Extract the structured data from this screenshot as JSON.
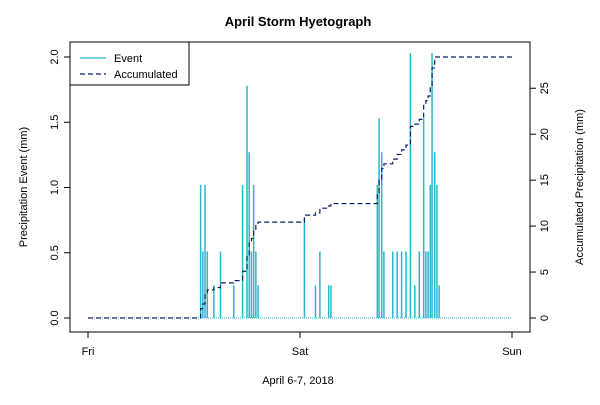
{
  "chart_data": {
    "type": "line",
    "title": "April Storm Hyetograph",
    "xlabel": "April 6-7, 2018",
    "ylabel_left": "Precipitation Event (mm)",
    "ylabel_right": "Accumulated Precipitation (mm)",
    "x_ticks": [
      "Fri",
      "Sat",
      "Sun"
    ],
    "x_range_hours": [
      0,
      48
    ],
    "ylim_left": [
      0,
      2.0
    ],
    "yticks_left": [
      "0.0",
      "0.5",
      "1.0",
      "1.5",
      "2.0"
    ],
    "ylim_right": [
      0,
      28.4
    ],
    "yticks_right": [
      "0",
      "5",
      "10",
      "15",
      "20",
      "25"
    ],
    "grid": false,
    "legend_position": "top-left",
    "colors": {
      "event": "#29b6d1",
      "accumulated": "#0b1f6b"
    },
    "series": [
      {
        "name": "Event",
        "style": "vertical bars",
        "x": [
          12.75,
          13.0,
          13.25,
          13.5,
          14.25,
          15.0,
          16.5,
          17.5,
          18.0,
          18.25,
          18.5,
          18.75,
          19.0,
          19.25,
          24.5,
          25.75,
          26.25,
          27.25,
          27.5,
          32.75,
          32.95,
          33.25,
          33.5,
          34.5,
          35.0,
          35.5,
          36.0,
          36.5,
          37.0,
          37.5,
          38.0,
          38.25,
          38.5,
          38.75,
          38.95,
          39.25,
          39.5,
          39.75
        ],
        "values": [
          1.02,
          0.51,
          1.02,
          0.51,
          0.25,
          0.51,
          0.25,
          1.02,
          1.78,
          1.27,
          0.51,
          1.02,
          0.51,
          0.25,
          0.76,
          0.25,
          0.51,
          0.25,
          0.25,
          1.02,
          1.53,
          1.27,
          0.51,
          0.51,
          0.51,
          0.51,
          0.51,
          2.03,
          0.25,
          0.51,
          1.53,
          0.51,
          0.51,
          1.02,
          2.03,
          1.27,
          1.02,
          0.25
        ]
      },
      {
        "name": "Accumulated",
        "style": "dashed line",
        "x": [
          0,
          12.75,
          13.0,
          13.25,
          13.5,
          14.25,
          15.0,
          16.5,
          17.5,
          18.0,
          18.25,
          18.5,
          18.75,
          19.0,
          19.25,
          24.5,
          25.75,
          26.25,
          27.25,
          27.5,
          32.75,
          32.95,
          33.25,
          33.5,
          34.5,
          35.0,
          35.5,
          36.0,
          36.5,
          37.0,
          37.5,
          38.0,
          38.25,
          38.5,
          38.75,
          38.95,
          39.25,
          39.5,
          39.75,
          48
        ],
        "values": [
          0,
          1.02,
          1.53,
          2.55,
          3.06,
          3.31,
          3.82,
          4.07,
          5.09,
          6.87,
          8.14,
          8.65,
          9.67,
          10.18,
          10.43,
          11.19,
          11.44,
          11.95,
          12.2,
          12.45,
          13.47,
          15.0,
          16.27,
          16.78,
          17.29,
          17.8,
          18.31,
          18.82,
          20.85,
          21.1,
          21.61,
          23.14,
          23.65,
          24.16,
          25.18,
          27.21,
          28.48,
          29.5,
          29.75,
          29.75
        ]
      }
    ]
  }
}
